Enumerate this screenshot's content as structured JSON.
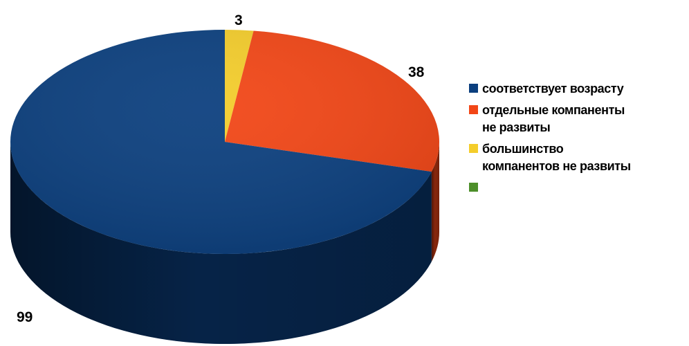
{
  "chart_data": {
    "type": "pie",
    "style": "3d",
    "legend_position": "right",
    "series": [
      {
        "name": "соответствует возрасту",
        "value": 99,
        "color": "#0b3f7e"
      },
      {
        "name": "отдельные компаненты\nне развиты",
        "value": 38,
        "color": "#f24616"
      },
      {
        "name": "большинство\nкомпанентов не развиты",
        "value": 3,
        "color": "#f4cd2b"
      },
      {
        "name": "",
        "value": null,
        "color": "#4d8f2a"
      }
    ],
    "data_labels": [
      "99",
      "38",
      "3"
    ]
  }
}
